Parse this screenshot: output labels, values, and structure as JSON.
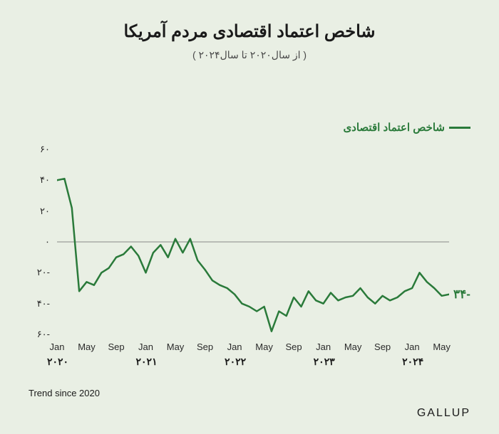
{
  "title": {
    "text": "شاخص اعتماد اقتصادی مردم آمریکا",
    "fontsize": 24,
    "color": "#1a1a1a"
  },
  "subtitle": {
    "text": "( از سال۲۰۲۰ تا سال۲۰۲۴ )",
    "fontsize": 14,
    "color": "#4a4a4a"
  },
  "legend": {
    "text": "شاخص اعتماد اقتصادی",
    "line_color": "#2a7a3a",
    "text_color": "#2a7a3a",
    "fontsize": 15
  },
  "chart": {
    "type": "line",
    "background_color": "#e9efe4",
    "yaxis": {
      "min": -60,
      "max": 60,
      "ticks": [
        -60,
        -40,
        -20,
        0,
        20,
        40,
        60
      ],
      "tick_labels": [
        "۶۰-",
        "۴۰-",
        "۲۰-",
        "۰",
        "۲۰",
        "۴۰",
        "۶۰"
      ],
      "fontsize": 13,
      "color": "#2a2a2a",
      "zero_line_color": "#888888",
      "zero_line_width": 1
    },
    "xaxis": {
      "month_labels": [
        "Jan",
        "May",
        "Sep",
        "Jan",
        "May",
        "Sep",
        "Jan",
        "May",
        "Sep",
        "Jan",
        "May",
        "Sep",
        "Jan",
        "May"
      ],
      "month_positions": [
        0,
        4,
        8,
        12,
        16,
        20,
        24,
        28,
        32,
        36,
        40,
        44,
        48,
        52
      ],
      "year_labels": [
        "۲۰۲۰",
        "۲۰۲۱",
        "۲۰۲۲",
        "۲۰۲۳",
        "۲۰۲۴"
      ],
      "year_positions": [
        0,
        12,
        24,
        36,
        48
      ],
      "n_points": 54,
      "fontsize": 13,
      "color": "#2a2a2a"
    },
    "series": {
      "color": "#2a7a3a",
      "line_width": 2.5,
      "values": [
        40,
        41,
        22,
        -32,
        -26,
        -28,
        -20,
        -17,
        -10,
        -8,
        -3,
        -9,
        -20,
        -7,
        -2,
        -10,
        2,
        -7,
        2,
        -12,
        -18,
        -25,
        -28,
        -30,
        -34,
        -40,
        -42,
        -45,
        -42,
        -58,
        -45,
        -48,
        -36,
        -42,
        -32,
        -38,
        -40,
        -33,
        -38,
        -36,
        -35,
        -30,
        -36,
        -40,
        -35,
        -38,
        -36,
        -32,
        -30,
        -20,
        -26,
        -30,
        -35,
        -34
      ]
    },
    "end_label": {
      "text": "۳۴-",
      "color": "#2a7a3a",
      "fontsize": 17
    }
  },
  "footer_left": {
    "text": "Trend since 2020",
    "fontsize": 13
  },
  "footer_right": {
    "text": "GALLUP",
    "fontsize": 16
  }
}
